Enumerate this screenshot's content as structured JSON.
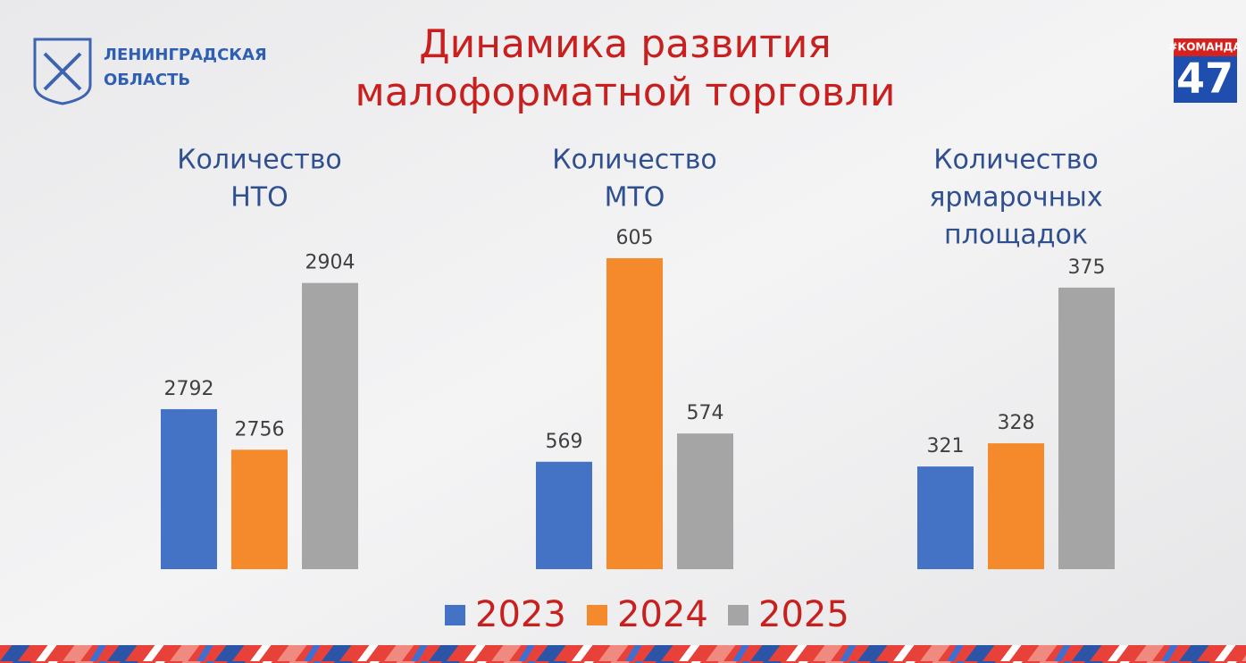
{
  "header": {
    "logo_text": [
      "ЛЕНИНГРАДСКАЯ",
      "ОБЛАСТЬ"
    ],
    "title": [
      "Динамика развития",
      "малоформатной торговли"
    ],
    "badge_tag": "#КОМАНДА",
    "badge_number": "47"
  },
  "legend": {
    "labels": [
      "2023",
      "2024",
      "2025"
    ],
    "colors": [
      "#4472c4",
      "#f48a2c",
      "#a5a5a5"
    ]
  },
  "chart_data": [
    {
      "type": "bar",
      "title": [
        "Количество",
        "НТО"
      ],
      "values": [
        2792,
        2756,
        2904
      ],
      "ylim": [
        2650,
        2941
      ]
    },
    {
      "type": "bar",
      "title": [
        "Количество",
        "МТО"
      ],
      "values": [
        569,
        605,
        574
      ],
      "ylim": [
        550,
        608
      ]
    },
    {
      "type": "bar",
      "title": [
        "Количество",
        "ярмарочных",
        "площадок"
      ],
      "values": [
        321,
        328,
        375
      ],
      "ylim": [
        290,
        389
      ]
    }
  ]
}
